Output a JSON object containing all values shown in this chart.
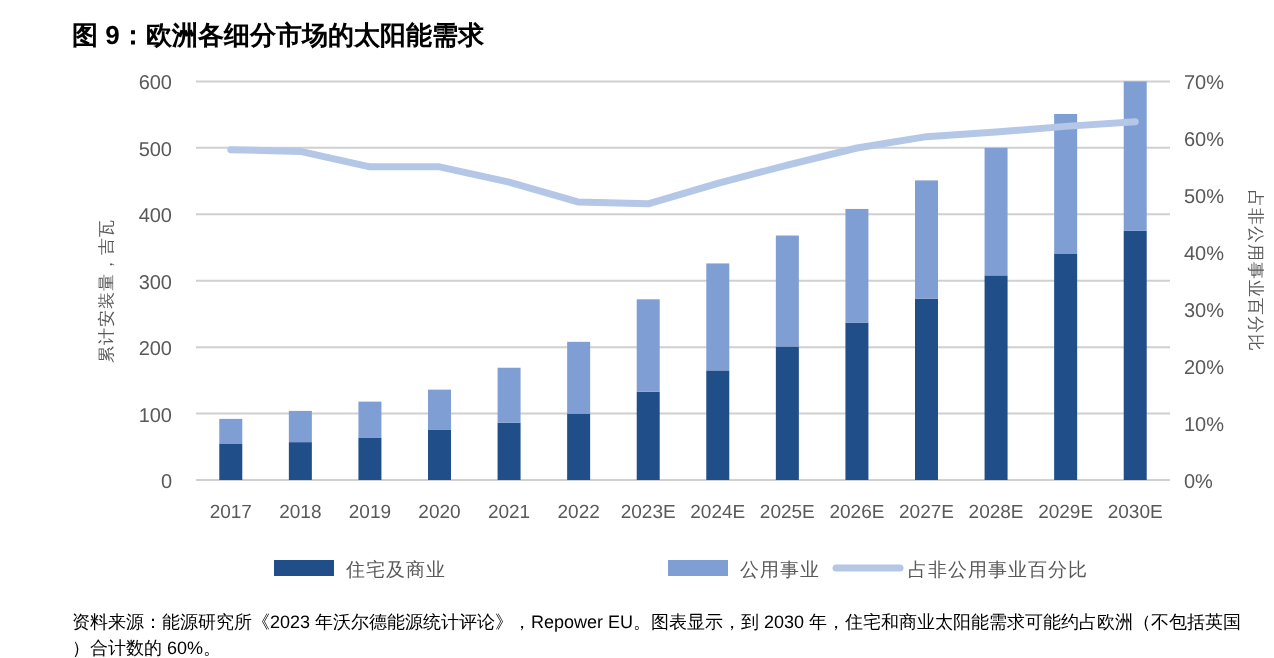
{
  "chart_data": {
    "type": "bar",
    "stacked": true,
    "title": "图 9：欧洲各细分市场的太阳能需求",
    "ylabel": "累计安装量，吉瓦",
    "y2label": "占非公用事业百分比",
    "categories": [
      "2017",
      "2018",
      "2019",
      "2020",
      "2021",
      "2022",
      "2023E",
      "2024E",
      "2025E",
      "2026E",
      "2027E",
      "2028E",
      "2029E",
      "2030E"
    ],
    "series": [
      {
        "name": "住宅及商业",
        "color": "#1f4e89",
        "values": [
          55,
          57,
          64,
          76,
          86,
          100,
          133,
          165,
          201,
          237,
          273,
          308,
          341,
          375
        ]
      },
      {
        "name": "公用事业",
        "color": "#7f9fd4",
        "values": [
          37,
          47,
          54,
          60,
          83,
          108,
          139,
          161,
          167,
          171,
          178,
          192,
          210,
          225
        ]
      },
      {
        "name": "占非公用事业百分比",
        "type": "line",
        "axis": "y2",
        "color": "#b4c7e7",
        "values": [
          58.0,
          57.7,
          55.0,
          55.0,
          52.3,
          48.8,
          48.5,
          52.1,
          55.3,
          58.3,
          60.3,
          61.1,
          62.1,
          62.9
        ]
      }
    ],
    "ylim": [
      0,
      600
    ],
    "yticks": [
      0,
      100,
      200,
      300,
      400,
      500,
      600
    ],
    "y2lim": [
      0,
      70
    ],
    "y2ticks": [
      {
        "value": 0,
        "label": "0%"
      },
      {
        "value": 10,
        "label": "10%"
      },
      {
        "value": 20,
        "label": "20%"
      },
      {
        "value": 30,
        "label": "30%"
      },
      {
        "value": 40,
        "label": "40%"
      },
      {
        "value": 50,
        "label": "50%"
      },
      {
        "value": 60,
        "label": "60%"
      },
      {
        "value": 70,
        "label": "70%"
      }
    ],
    "grid": "y",
    "legend": "bottom",
    "annotations": [
      "资料来源：能源研究所《2023 年沃尔德能源统计评论》，Repower EU。图表显示，到 2030 年，住宅和商业太阳能需求可能约占欧洲（不包括英国）合计数的 60%。"
    ]
  }
}
